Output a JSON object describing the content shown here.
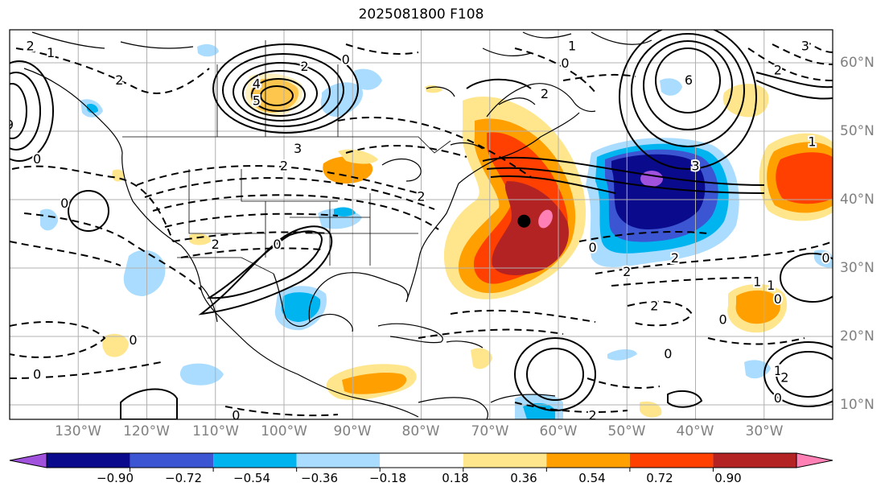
{
  "title": "2025081800 F108",
  "map": {
    "projection": "cylindrical",
    "extent": {
      "lon_min": -140,
      "lon_max": -20,
      "lat_min": 8,
      "lat_max": 65
    },
    "lon_labels": [
      "130°W",
      "120°W",
      "110°W",
      "100°W",
      "90°W",
      "80°W",
      "70°W",
      "60°W",
      "50°W",
      "40°W",
      "30°W"
    ],
    "lat_labels": [
      "60°N",
      "50°N",
      "40°N",
      "30°N",
      "20°N",
      "10°N"
    ],
    "gridlines": true,
    "label_color": "#808080",
    "marker": {
      "name": "black dot",
      "lon": -65,
      "lat": 37,
      "color": "#000000"
    },
    "contour_labels": [
      {
        "text": "2",
        "lon": -137,
        "lat": 62.5
      },
      {
        "text": "1",
        "lon": -134,
        "lat": 61.5
      },
      {
        "text": "9",
        "lon": -140,
        "lat": 51
      },
      {
        "text": "0",
        "lon": -136,
        "lat": 46
      },
      {
        "text": "0",
        "lon": -132,
        "lat": 39.5
      },
      {
        "text": "2",
        "lon": -124,
        "lat": 57.5
      },
      {
        "text": "4",
        "lon": -104,
        "lat": 57
      },
      {
        "text": "2",
        "lon": -97,
        "lat": 59.5
      },
      {
        "text": "5",
        "lon": -104,
        "lat": 54.5
      },
      {
        "text": "3",
        "lon": -98,
        "lat": 47.5
      },
      {
        "text": "2",
        "lon": -100,
        "lat": 45
      },
      {
        "text": "0",
        "lon": -91,
        "lat": 60.5
      },
      {
        "text": "2",
        "lon": -110,
        "lat": 33.5
      },
      {
        "text": "0",
        "lon": -101,
        "lat": 33.5
      },
      {
        "text": "2",
        "lon": -80,
        "lat": 40.5
      },
      {
        "text": "1",
        "lon": -58,
        "lat": 62.5
      },
      {
        "text": "0",
        "lon": -59,
        "lat": 60
      },
      {
        "text": "2",
        "lon": -62,
        "lat": 55.5
      },
      {
        "text": "6",
        "lon": -41,
        "lat": 57.5
      },
      {
        "text": "3",
        "lon": -40,
        "lat": 45
      },
      {
        "text": "2",
        "lon": -50,
        "lat": 29.5
      },
      {
        "text": "2",
        "lon": -43,
        "lat": 31.5
      },
      {
        "text": "2",
        "lon": -46,
        "lat": 24.5
      },
      {
        "text": "0",
        "lon": -44,
        "lat": 17.5
      },
      {
        "text": "1",
        "lon": -29,
        "lat": 27.5
      },
      {
        "text": "0",
        "lon": -28,
        "lat": 25.5
      },
      {
        "text": "0",
        "lon": -122,
        "lat": 19.5
      },
      {
        "text": "0",
        "lon": -136,
        "lat": 14.5
      },
      {
        "text": "0",
        "lon": -36,
        "lat": 22.5
      },
      {
        "text": "1",
        "lon": -28,
        "lat": 15
      },
      {
        "text": "2",
        "lon": -27,
        "lat": 14
      },
      {
        "text": "0",
        "lon": -28,
        "lat": 11
      },
      {
        "text": "2",
        "lon": -55,
        "lat": 8.5
      },
      {
        "text": "0",
        "lon": -107,
        "lat": 8.5
      },
      {
        "text": "3",
        "lon": -24,
        "lat": 62.5
      },
      {
        "text": "2",
        "lon": -28,
        "lat": 59
      },
      {
        "text": "1",
        "lon": -23,
        "lat": 48.5
      },
      {
        "text": "0",
        "lon": -21,
        "lat": 31.5
      },
      {
        "text": "1",
        "lon": -31,
        "lat": 28
      },
      {
        "text": "0",
        "lon": -55,
        "lat": 33
      }
    ]
  },
  "colorbar": {
    "ticks": [
      "−0.90",
      "−0.72",
      "−0.54",
      "−0.36",
      "−0.18",
      "0.18",
      "0.36",
      "0.54",
      "0.72",
      "0.90"
    ],
    "colors": [
      "#a052dc",
      "#0a0a8c",
      "#3c55d2",
      "#00b4f0",
      "#aadcff",
      "#ffffff",
      "#ffe68c",
      "#ffa000",
      "#ff4000",
      "#b42323",
      "#ff80b4"
    ],
    "extend": "both"
  },
  "chart_data": {
    "type": "heatmap",
    "title": "2025081800 F108",
    "xlabel": "",
    "ylabel": "",
    "xlim": [
      -140,
      -20
    ],
    "ylim": [
      8,
      65
    ],
    "levels": [
      -0.9,
      -0.72,
      -0.54,
      -0.36,
      -0.18,
      0.18,
      0.36,
      0.54,
      0.72,
      0.9
    ],
    "shaded_features": [
      {
        "feature": "positive max (pink core)",
        "lon": -65,
        "lat": 36,
        "value": 0.95
      },
      {
        "feature": "positive anomaly band",
        "lon": -69,
        "lat": 42,
        "value": 0.8
      },
      {
        "feature": "negative min (purple core)",
        "lon": -45,
        "lat": 42,
        "value": -0.95
      },
      {
        "feature": "negative anomaly ring",
        "lon": -43,
        "lat": 37,
        "value": -0.6
      },
      {
        "feature": "positive anomaly",
        "lon": -25,
        "lat": 42,
        "value": 0.6
      },
      {
        "feature": "positive anomaly",
        "lon": -104,
        "lat": 55,
        "value": 0.4
      },
      {
        "feature": "positive anomaly",
        "lon": -34,
        "lat": 25,
        "value": 0.4
      },
      {
        "feature": "positive anomaly",
        "lon": -86,
        "lat": 14,
        "value": 0.4
      },
      {
        "feature": "negative anomaly",
        "lon": -98,
        "lat": 24,
        "value": -0.36
      },
      {
        "feature": "negative anomaly",
        "lon": -115,
        "lat": 20,
        "value": -0.2
      },
      {
        "feature": "negative anomaly",
        "lon": -56,
        "lat": 8.5,
        "value": -0.36
      }
    ],
    "grid": true
  }
}
